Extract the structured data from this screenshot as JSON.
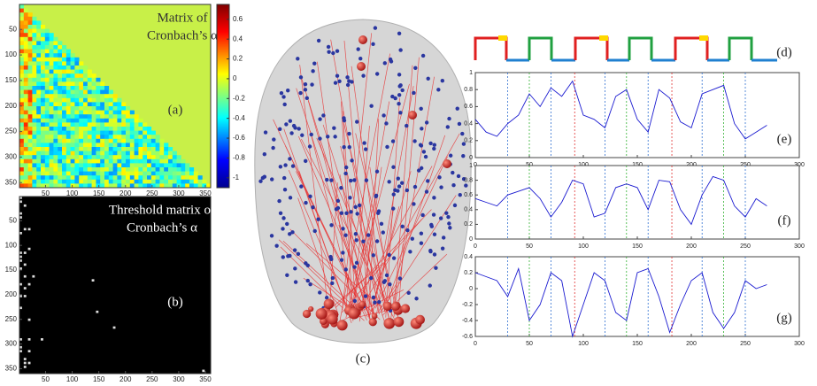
{
  "figure": {
    "matrix_a": {
      "title_lines": [
        "Matrix of",
        "Cronbach’s α"
      ],
      "label": "(a)",
      "lim": [
        1,
        360
      ],
      "xticks": [
        50,
        100,
        150,
        200,
        250,
        300,
        350
      ],
      "yticks": [
        50,
        100,
        150,
        200,
        250,
        300,
        350
      ],
      "colorbar": {
        "lim": [
          -1.1,
          0.75
        ],
        "ticks": [
          0.6,
          0.4,
          0.2,
          0,
          -0.2,
          -0.4,
          -0.6,
          -0.8,
          -1
        ]
      }
    },
    "matrix_b": {
      "title_lines": [
        "Threshold matrix  of",
        "Cronbach’s α"
      ],
      "label": "(b)",
      "lim": [
        1,
        360
      ],
      "xticks": [
        50,
        100,
        150,
        200,
        250,
        300,
        350
      ],
      "yticks": [
        50,
        100,
        150,
        200,
        250,
        300,
        350
      ]
    },
    "brain": {
      "label": "(c)"
    },
    "design": {
      "label": "(d)"
    },
    "markers": [
      {
        "x": 30,
        "color": "#3070d0"
      },
      {
        "x": 50,
        "color": "#30b030"
      },
      {
        "x": 70,
        "color": "#3070d0"
      },
      {
        "x": 92,
        "color": "#e03030"
      },
      {
        "x": 120,
        "color": "#3070d0"
      },
      {
        "x": 140,
        "color": "#30b030"
      },
      {
        "x": 160,
        "color": "#3070d0"
      },
      {
        "x": 182,
        "color": "#e03030"
      },
      {
        "x": 210,
        "color": "#3070d0"
      },
      {
        "x": 230,
        "color": "#30b030"
      },
      {
        "x": 250,
        "color": "#3070d0"
      }
    ],
    "x": [
      0,
      10,
      20,
      30,
      40,
      50,
      60,
      70,
      80,
      90,
      100,
      110,
      120,
      130,
      140,
      150,
      160,
      170,
      180,
      190,
      200,
      210,
      220,
      230,
      240,
      250,
      260,
      270
    ],
    "signals": [
      {
        "label": "(e)",
        "ylim": [
          0,
          1
        ],
        "yticks": [
          0,
          0.2,
          0.4,
          0.6,
          0.8,
          1
        ],
        "xlim": [
          0,
          300
        ],
        "xticks": [
          0,
          50,
          100,
          150,
          200,
          250,
          300
        ],
        "values": [
          0.45,
          0.3,
          0.25,
          0.4,
          0.5,
          0.75,
          0.6,
          0.82,
          0.72,
          0.9,
          0.5,
          0.45,
          0.35,
          0.72,
          0.8,
          0.45,
          0.3,
          0.8,
          0.7,
          0.42,
          0.35,
          0.75,
          0.8,
          0.85,
          0.4,
          0.22,
          0.3,
          0.38
        ]
      },
      {
        "label": "(f)",
        "ylim": [
          0,
          1
        ],
        "yticks": [
          0,
          0.2,
          0.4,
          0.6,
          0.8,
          1
        ],
        "xlim": [
          0,
          300
        ],
        "xticks": [
          0,
          50,
          100,
          150,
          200,
          250,
          300
        ],
        "values": [
          0.55,
          0.5,
          0.45,
          0.6,
          0.65,
          0.7,
          0.55,
          0.3,
          0.5,
          0.8,
          0.75,
          0.3,
          0.35,
          0.7,
          0.75,
          0.7,
          0.4,
          0.8,
          0.78,
          0.4,
          0.2,
          0.6,
          0.85,
          0.8,
          0.45,
          0.3,
          0.55,
          0.45
        ]
      },
      {
        "label": "(g)",
        "ylim": [
          -0.6,
          0.4
        ],
        "yticks": [
          -0.6,
          -0.4,
          -0.2,
          0,
          0.2,
          0.4
        ],
        "xlim": [
          0,
          300
        ],
        "xticks": [
          0,
          50,
          100,
          150,
          200,
          250,
          300
        ],
        "values": [
          0.2,
          0.15,
          0.1,
          -0.1,
          0.25,
          -0.4,
          -0.2,
          0.2,
          0.1,
          -0.6,
          -0.2,
          0.2,
          0.1,
          -0.3,
          -0.4,
          0.2,
          0.25,
          -0.1,
          -0.55,
          -0.2,
          0.1,
          0.2,
          -0.3,
          -0.5,
          -0.3,
          0.1,
          0,
          0.05
        ]
      }
    ]
  }
}
